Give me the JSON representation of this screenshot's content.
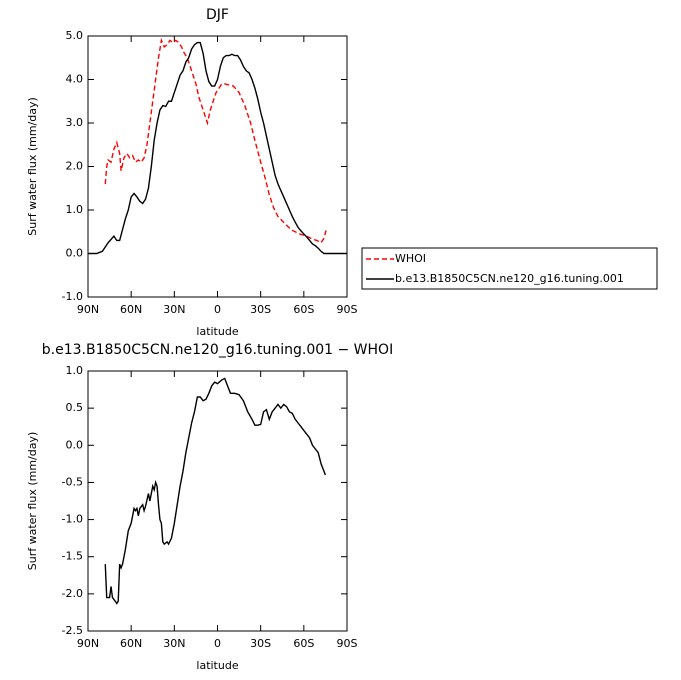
{
  "chart_data": [
    {
      "type": "line",
      "title": "DJF",
      "xlabel": "latitude",
      "ylabel": "Surf water flux (mm/day)",
      "xlim": [
        90,
        -90
      ],
      "ylim": [
        -1,
        5
      ],
      "xticks": [
        {
          "value": 90,
          "label": "90N"
        },
        {
          "value": 60,
          "label": "60N"
        },
        {
          "value": 30,
          "label": "30N"
        },
        0,
        {
          "value": -30,
          "label": "30S"
        },
        {
          "value": -60,
          "label": "60S"
        },
        {
          "value": -90,
          "label": "90S"
        }
      ],
      "yticks": [
        {
          "value": -1,
          "label": "-1.0"
        },
        {
          "value": 0,
          "label": "0.0"
        },
        {
          "value": 1,
          "label": "1.0"
        },
        {
          "value": 2,
          "label": "2.0"
        },
        {
          "value": 3,
          "label": "3.0"
        },
        {
          "value": 4,
          "label": "4.0"
        },
        {
          "value": 5,
          "label": "5.0"
        }
      ],
      "series": [
        {
          "name": "WHOI",
          "color": "#ff0000",
          "style": "dashed",
          "x": [
            78,
            77,
            76,
            74,
            72,
            70,
            68,
            67,
            65,
            63,
            61,
            59,
            57,
            55,
            53,
            51,
            49,
            47,
            45,
            43,
            41,
            39,
            37,
            35,
            33,
            31,
            29,
            27,
            25,
            23,
            21,
            19,
            17,
            15,
            13,
            11,
            9,
            7,
            5,
            3,
            1,
            -1,
            -3,
            -5,
            -7,
            -9,
            -11,
            -15,
            -19,
            -23,
            -26,
            -30,
            -33,
            -36,
            -39,
            -42,
            -45,
            -48,
            -51,
            -54,
            -57,
            -60,
            -63,
            -66,
            -69,
            -72,
            -74,
            -76
          ],
          "values": [
            1.6,
            2.0,
            2.15,
            2.1,
            2.4,
            2.55,
            2.3,
            1.9,
            2.2,
            2.3,
            2.2,
            2.25,
            2.1,
            2.15,
            2.1,
            2.2,
            2.5,
            3.0,
            3.5,
            4.0,
            4.5,
            4.9,
            4.75,
            4.8,
            4.9,
            4.85,
            4.9,
            4.85,
            4.75,
            4.6,
            4.5,
            4.3,
            4.1,
            3.9,
            3.6,
            3.4,
            3.2,
            3.0,
            3.3,
            3.5,
            3.7,
            3.8,
            3.9,
            3.9,
            3.88,
            3.87,
            3.85,
            3.7,
            3.4,
            3.0,
            2.6,
            2.1,
            1.75,
            1.35,
            1.05,
            0.85,
            0.75,
            0.65,
            0.55,
            0.5,
            0.45,
            0.42,
            0.38,
            0.33,
            0.3,
            0.25,
            0.35,
            0.6
          ]
        },
        {
          "name": "b.e13.B1850C5CN.ne120_g16.tuning.001",
          "color": "#000000",
          "style": "solid",
          "x": [
            90,
            84,
            80,
            76,
            72,
            70,
            68,
            64,
            62,
            60,
            58,
            56,
            54,
            52,
            50,
            48,
            46,
            44,
            42,
            40,
            38,
            36,
            34,
            32,
            30,
            28,
            26,
            24,
            22,
            20,
            18,
            16,
            14,
            12,
            10,
            8,
            6,
            4,
            2,
            0,
            -2,
            -4,
            -6,
            -8,
            -10,
            -12,
            -14,
            -16,
            -18,
            -20,
            -22,
            -24,
            -26,
            -28,
            -30,
            -32,
            -34,
            -36,
            -38,
            -40,
            -42,
            -44,
            -46,
            -48,
            -50,
            -52,
            -54,
            -56,
            -58,
            -60,
            -62,
            -64,
            -66,
            -68,
            -70,
            -72,
            -74,
            -78,
            -84,
            -90
          ],
          "values": [
            0.0,
            0.0,
            0.05,
            0.25,
            0.4,
            0.3,
            0.3,
            0.8,
            1.0,
            1.3,
            1.38,
            1.3,
            1.2,
            1.15,
            1.25,
            1.5,
            2.0,
            2.6,
            3.0,
            3.3,
            3.4,
            3.38,
            3.5,
            3.5,
            3.7,
            3.9,
            4.1,
            4.2,
            4.4,
            4.5,
            4.7,
            4.8,
            4.85,
            4.85,
            4.6,
            4.2,
            3.95,
            3.85,
            3.85,
            4.0,
            4.3,
            4.5,
            4.55,
            4.55,
            4.58,
            4.55,
            4.55,
            4.45,
            4.3,
            4.2,
            4.15,
            4.0,
            3.8,
            3.55,
            3.25,
            3.0,
            2.7,
            2.4,
            2.1,
            1.8,
            1.6,
            1.45,
            1.3,
            1.15,
            1.0,
            0.85,
            0.72,
            0.6,
            0.52,
            0.45,
            0.38,
            0.3,
            0.22,
            0.18,
            0.12,
            0.05,
            0.0,
            0.0,
            0.0,
            0.0
          ]
        }
      ]
    },
    {
      "type": "line",
      "title": "b.e13.B1850C5CN.ne120_g16.tuning.001 − WHOI",
      "xlabel": "latitude",
      "ylabel": "Surf water flux (mm/day)",
      "xlim": [
        90,
        -90
      ],
      "ylim": [
        -2.5,
        1
      ],
      "xticks": [
        {
          "value": 90,
          "label": "90N"
        },
        {
          "value": 60,
          "label": "60N"
        },
        {
          "value": 30,
          "label": "30N"
        },
        0,
        {
          "value": -30,
          "label": "30S"
        },
        {
          "value": -60,
          "label": "60S"
        },
        {
          "value": -90,
          "label": "90S"
        }
      ],
      "yticks": [
        {
          "value": -2.5,
          "label": "-2.5"
        },
        {
          "value": -2,
          "label": "-2.0"
        },
        {
          "value": -1.5,
          "label": "-1.5"
        },
        {
          "value": -1,
          "label": "-1.0"
        },
        {
          "value": -0.5,
          "label": "-0.5"
        },
        {
          "value": 0,
          "label": "0.0"
        },
        0.5,
        {
          "value": 1,
          "label": "1.0"
        }
      ],
      "series": [
        {
          "color": "#000000",
          "style": "solid",
          "x": [
            78,
            77,
            75,
            74,
            73,
            71,
            70,
            69,
            68,
            67,
            66,
            64,
            62,
            60,
            58,
            57,
            56,
            55,
            54,
            52,
            51,
            50,
            48,
            47,
            45,
            44,
            43,
            42,
            41,
            40,
            39,
            38,
            37,
            35,
            34,
            32,
            30,
            28,
            26,
            24,
            22,
            20,
            18,
            16,
            14,
            12,
            10,
            8,
            6,
            4,
            2,
            0,
            -3,
            -5,
            -7,
            -9,
            -12,
            -15,
            -18,
            -21,
            -24,
            -26,
            -28,
            -30,
            -32,
            -34,
            -36,
            -38,
            -40,
            -42,
            -44,
            -46,
            -48,
            -50,
            -52,
            -54,
            -56,
            -58,
            -60,
            -62,
            -64,
            -66,
            -68,
            -70,
            -72,
            -75
          ],
          "values": [
            -1.6,
            -2.05,
            -2.05,
            -1.9,
            -2.05,
            -2.1,
            -2.13,
            -2.1,
            -1.6,
            -1.65,
            -1.6,
            -1.4,
            -1.15,
            -1.05,
            -0.85,
            -0.88,
            -0.85,
            -0.95,
            -0.85,
            -0.8,
            -0.88,
            -0.82,
            -0.65,
            -0.75,
            -0.55,
            -0.6,
            -0.5,
            -0.55,
            -0.8,
            -1.0,
            -1.05,
            -1.3,
            -1.33,
            -1.3,
            -1.33,
            -1.25,
            -1.05,
            -0.8,
            -0.55,
            -0.35,
            -0.1,
            0.1,
            0.3,
            0.45,
            0.65,
            0.65,
            0.6,
            0.62,
            0.7,
            0.8,
            0.85,
            0.83,
            0.88,
            0.9,
            0.8,
            0.7,
            0.7,
            0.68,
            0.6,
            0.45,
            0.35,
            0.27,
            0.27,
            0.28,
            0.45,
            0.48,
            0.35,
            0.45,
            0.5,
            0.55,
            0.5,
            0.55,
            0.52,
            0.45,
            0.43,
            0.35,
            0.3,
            0.25,
            0.2,
            0.15,
            0.1,
            0.0,
            -0.05,
            -0.1,
            -0.25,
            -0.4
          ]
        }
      ]
    }
  ]
}
